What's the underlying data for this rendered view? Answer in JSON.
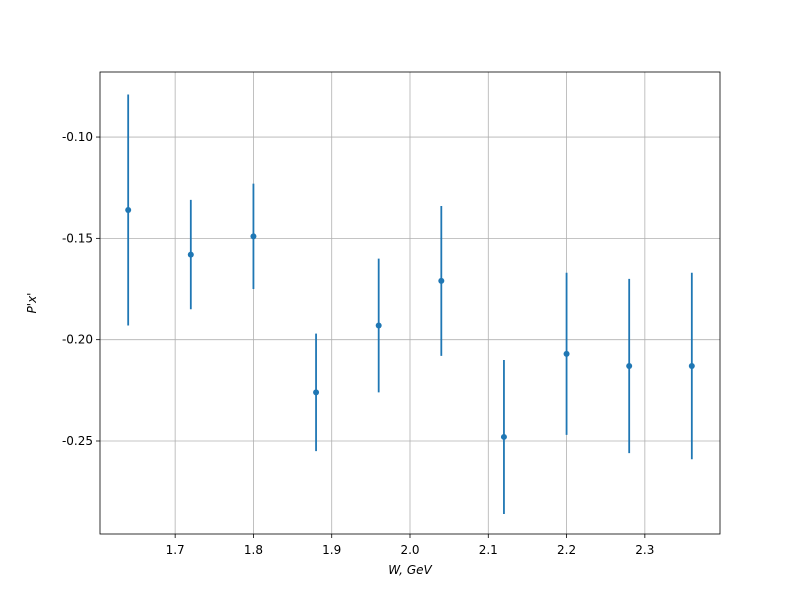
{
  "chart_data": {
    "type": "errorbar",
    "xlabel": "W, GeV",
    "ylabel": "P'x'",
    "x": [
      1.64,
      1.72,
      1.8,
      1.88,
      1.96,
      2.04,
      2.12,
      2.2,
      2.28,
      2.36
    ],
    "values": [
      -0.136,
      -0.158,
      -0.149,
      -0.226,
      -0.193,
      -0.171,
      -0.248,
      -0.207,
      -0.213,
      -0.213
    ],
    "errors": [
      0.057,
      0.027,
      0.026,
      0.029,
      0.033,
      0.037,
      0.038,
      0.04,
      0.043,
      0.046
    ],
    "color": "#1f77b4",
    "xlim": [
      1.604,
      2.396
    ],
    "ylim": [
      -0.2959,
      -0.0679
    ],
    "xticks": [
      1.7,
      1.8,
      1.9,
      {
        "value": 2.0,
        "label": "2.0"
      },
      2.1,
      2.2,
      2.3
    ],
    "yticks": [
      {
        "value": -0.25,
        "label": "-0.25"
      },
      {
        "value": -0.2,
        "label": "-0.20"
      },
      {
        "value": -0.15,
        "label": "-0.15"
      },
      {
        "value": -0.1,
        "label": "-0.10"
      }
    ],
    "grid": true
  }
}
